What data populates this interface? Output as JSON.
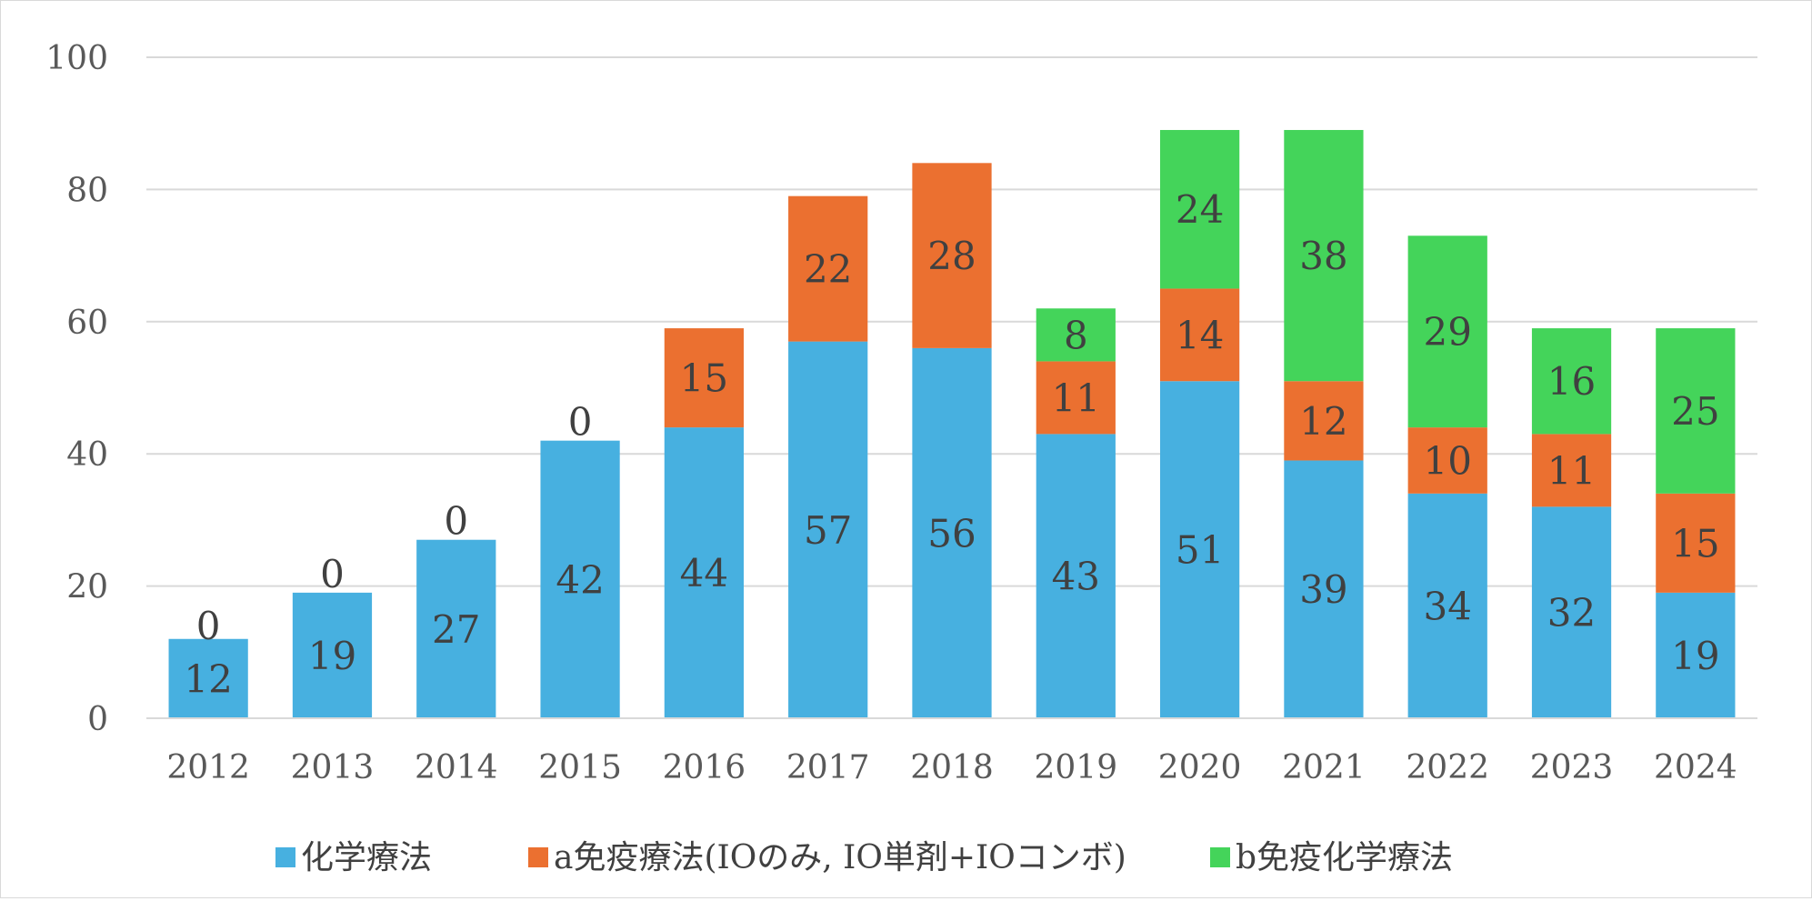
{
  "chart_data": {
    "type": "bar",
    "stacked": true,
    "categories": [
      "2012",
      "2013",
      "2014",
      "2015",
      "2016",
      "2017",
      "2018",
      "2019",
      "2020",
      "2021",
      "2022",
      "2023",
      "2024"
    ],
    "series": [
      {
        "name": "化学療法",
        "color": "#47b0e0",
        "values": [
          12,
          19,
          27,
          42,
          44,
          57,
          56,
          43,
          51,
          39,
          34,
          32,
          19
        ],
        "labels": [
          "12",
          "19",
          "27",
          "42",
          "44",
          "57",
          "56",
          "43",
          "51",
          "39",
          "34",
          "32",
          "19"
        ]
      },
      {
        "name": "a免疫療法(IOのみ, IO単剤+IOコンボ)",
        "color": "#eb7030",
        "values": [
          0,
          0,
          0,
          0,
          15,
          22,
          28,
          11,
          14,
          12,
          10,
          11,
          15
        ],
        "labels": [
          "0",
          "0",
          "0",
          "0",
          "15",
          "22",
          "28",
          "11",
          "14",
          "12",
          "10",
          "11",
          "15"
        ]
      },
      {
        "name": "b免疫化学療法",
        "color": "#44d45a",
        "values": [
          0,
          0,
          0,
          0,
          0,
          0,
          0,
          8,
          24,
          38,
          29,
          16,
          25
        ],
        "labels": [
          "",
          "",
          "",
          "",
          "",
          "",
          "",
          "8",
          "24",
          "38",
          "29",
          "16",
          "25"
        ]
      }
    ],
    "yticks": [
      "0",
      "20",
      "40",
      "60",
      "80",
      "100"
    ],
    "ylim": [
      0,
      100
    ],
    "grid": true,
    "legend_position": "bottom"
  }
}
